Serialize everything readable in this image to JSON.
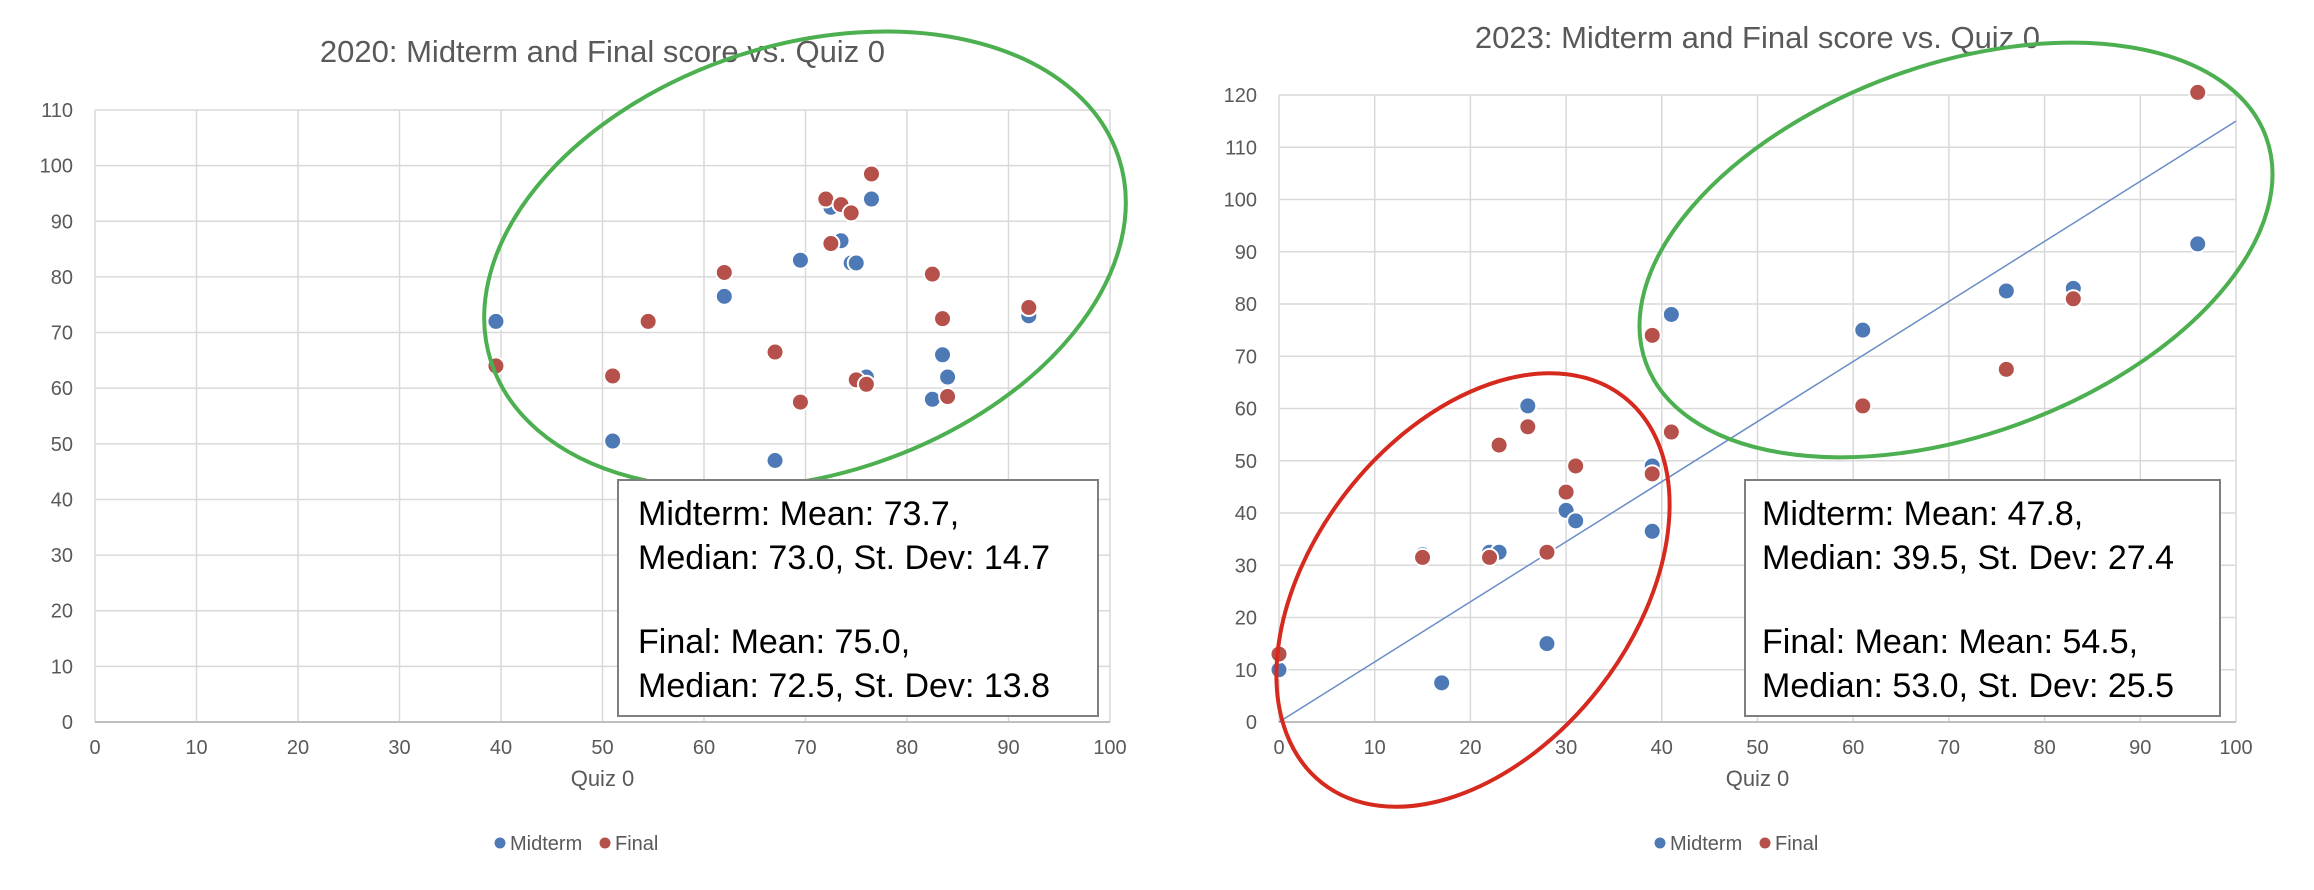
{
  "colors": {
    "midterm": "#4e79b7",
    "final": "#b5504a",
    "grid": "#d9d9d9",
    "axis_text": "#595959",
    "ellipse_green": "#4caf50",
    "ellipse_red": "#d62a1f",
    "trendline": "#6a8dc7"
  },
  "chart_data": [
    {
      "type": "scatter",
      "title": "2020: Midterm and Final score vs. Quiz 0",
      "xlabel": "Quiz 0",
      "ylabel": "",
      "xlim": [
        0,
        100
      ],
      "ylim": [
        0,
        110
      ],
      "x_ticks": [
        "0",
        "10",
        "20",
        "30",
        "40",
        "50",
        "60",
        "70",
        "80",
        "90",
        "100"
      ],
      "y_ticks": [
        "0",
        "10",
        "20",
        "30",
        "40",
        "50",
        "60",
        "70",
        "80",
        "90",
        "100",
        "110"
      ],
      "grid": true,
      "legend": "bottom",
      "series": [
        {
          "name": "Midterm",
          "points": [
            [
              39.5,
              72
            ],
            [
              51,
              50.5
            ],
            [
              62,
              76.5
            ],
            [
              67,
              47
            ],
            [
              69.5,
              83
            ],
            [
              72.5,
              92.5
            ],
            [
              73.5,
              86.5
            ],
            [
              74.5,
              82.5
            ],
            [
              75,
              82.5
            ],
            [
              76,
              62
            ],
            [
              76.5,
              94
            ],
            [
              82.5,
              58
            ],
            [
              83.5,
              66
            ],
            [
              84,
              62
            ],
            [
              92,
              73
            ]
          ]
        },
        {
          "name": "Final",
          "points": [
            [
              39.5,
              64
            ],
            [
              51,
              62.2
            ],
            [
              54.5,
              72
            ],
            [
              62,
              80.8
            ],
            [
              67,
              66.5
            ],
            [
              69.5,
              57.5
            ],
            [
              72,
              94
            ],
            [
              72.5,
              86
            ],
            [
              73.5,
              93
            ],
            [
              74.5,
              91.5
            ],
            [
              75,
              61.5
            ],
            [
              76,
              60.7
            ],
            [
              76.5,
              98.5
            ],
            [
              82.5,
              80.5
            ],
            [
              83.5,
              72.5
            ],
            [
              84,
              58.5
            ],
            [
              92,
              74.5
            ]
          ]
        }
      ],
      "annotations": {
        "green_ellipse": true,
        "stats_lines": [
          "Midterm: Mean: 73.7,",
          "Median: 73.0, St. Dev: 14.7",
          "Final: Mean: 75.0,",
          "Median: 72.5, St. Dev: 13.8"
        ]
      }
    },
    {
      "type": "scatter",
      "title": "2023: Midterm and Final score vs. Quiz 0",
      "xlabel": "Quiz 0",
      "ylabel": "",
      "xlim": [
        0,
        100
      ],
      "ylim": [
        0,
        120
      ],
      "x_ticks": [
        "0",
        "10",
        "20",
        "30",
        "40",
        "50",
        "60",
        "70",
        "80",
        "90",
        "100"
      ],
      "y_ticks": [
        "0",
        "10",
        "20",
        "30",
        "40",
        "50",
        "60",
        "70",
        "80",
        "90",
        "100",
        "110",
        "120"
      ],
      "grid": true,
      "legend": "bottom",
      "trendline": {
        "x": [
          0,
          100
        ],
        "y": [
          0,
          115
        ]
      },
      "series": [
        {
          "name": "Midterm",
          "points": [
            [
              0,
              10
            ],
            [
              15,
              32
            ],
            [
              17,
              7.5
            ],
            [
              22,
              32.5
            ],
            [
              23,
              32.5
            ],
            [
              26,
              60.5
            ],
            [
              28,
              32.5
            ],
            [
              28,
              15
            ],
            [
              30,
              40.5
            ],
            [
              31,
              38.5
            ],
            [
              39,
              49
            ],
            [
              39,
              36.5
            ],
            [
              41,
              78
            ],
            [
              61,
              75
            ],
            [
              76,
              82.5
            ],
            [
              83,
              83
            ],
            [
              96,
              91.5
            ]
          ]
        },
        {
          "name": "Final",
          "points": [
            [
              0,
              13
            ],
            [
              15,
              31.5
            ],
            [
              22,
              31.5
            ],
            [
              23,
              53
            ],
            [
              26,
              56.5
            ],
            [
              28,
              32.5
            ],
            [
              30,
              44
            ],
            [
              31,
              49
            ],
            [
              39,
              74
            ],
            [
              39,
              47.5
            ],
            [
              41,
              55.5
            ],
            [
              61,
              60.5
            ],
            [
              76,
              67.5
            ],
            [
              83,
              81
            ],
            [
              96,
              120.5
            ]
          ]
        }
      ],
      "annotations": {
        "green_ellipse": true,
        "red_ellipse": true,
        "stats_lines": [
          "Midterm: Mean: 47.8,",
          "Median: 39.5, St. Dev: 27.4",
          "Final: Mean: Mean: 54.5,",
          "Median: 53.0, St. Dev: 25.5"
        ]
      }
    }
  ]
}
